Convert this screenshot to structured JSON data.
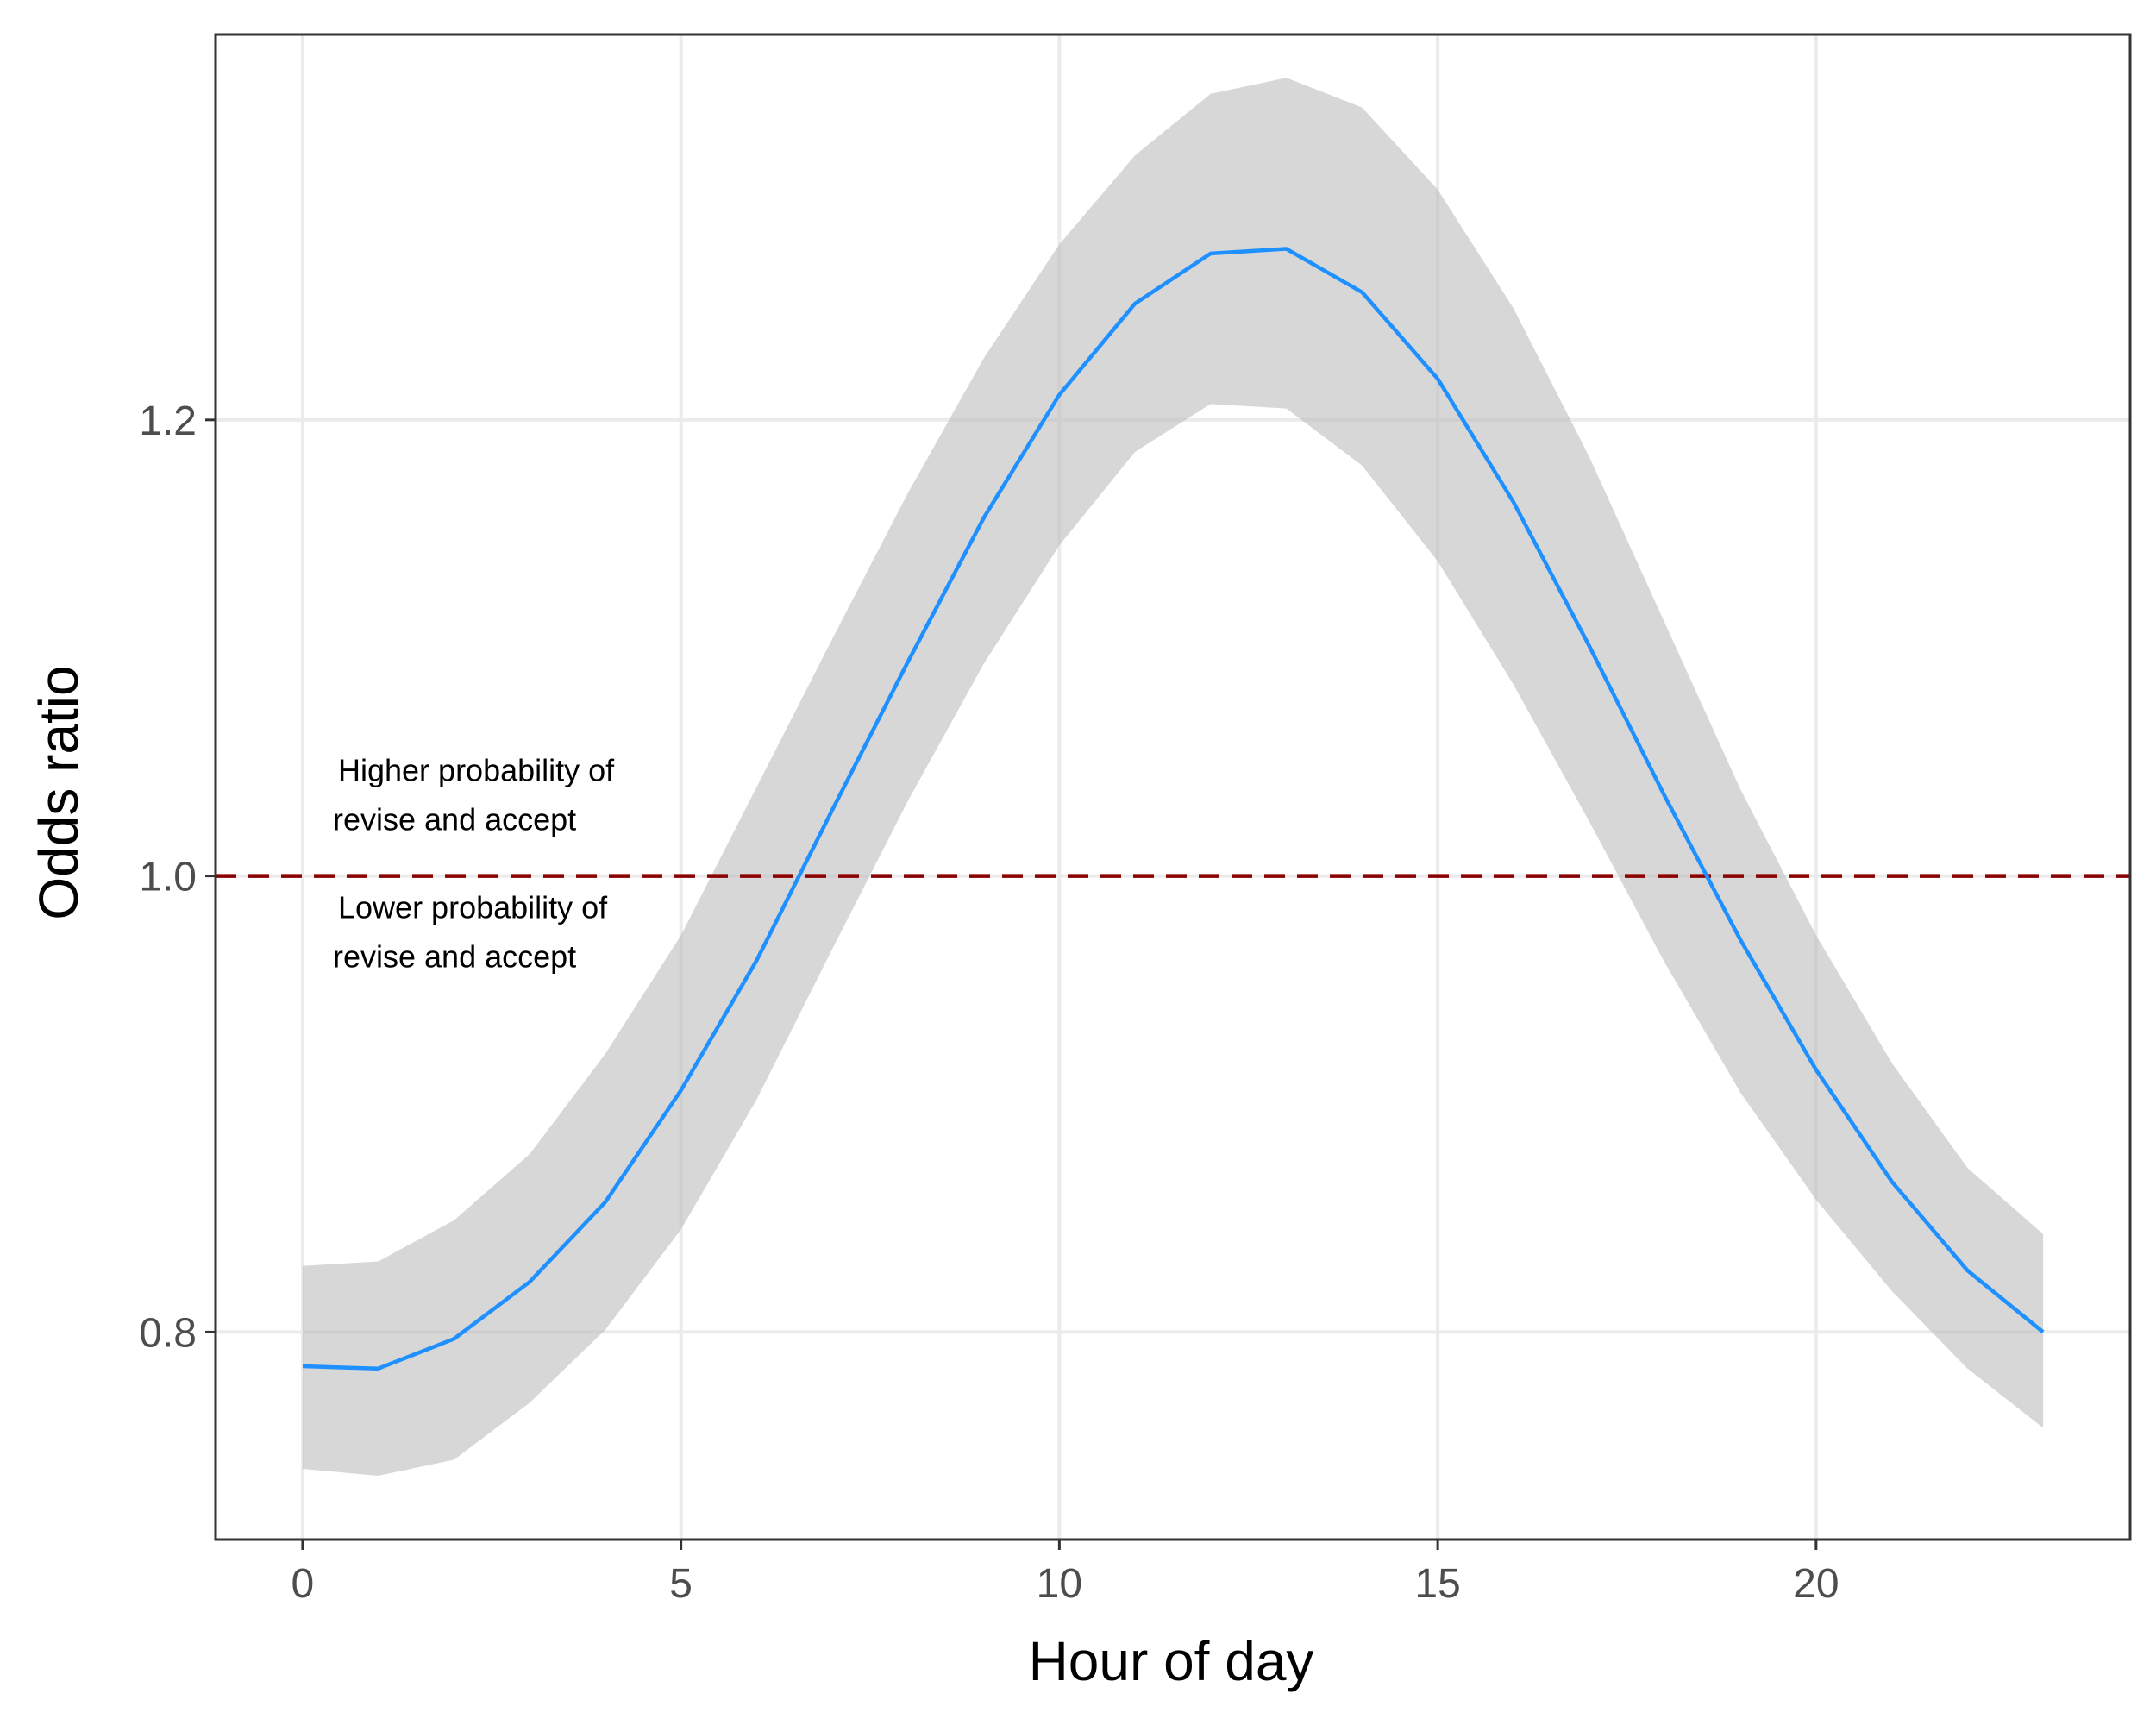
{
  "chart_data": {
    "type": "line",
    "title": "",
    "xlabel": "Hour of day",
    "ylabel": "Odds ratio",
    "xlim": [
      -1.15,
      24.15
    ],
    "ylim": [
      0.709,
      1.369
    ],
    "x_ticks": [
      0,
      5,
      10,
      15,
      20
    ],
    "x_tick_labels": [
      "0",
      "5",
      "10",
      "15",
      "20"
    ],
    "y_ticks": [
      0.8,
      1.0,
      1.2
    ],
    "y_tick_labels": [
      "0.8",
      "1.0",
      "1.2"
    ],
    "grid": true,
    "series": [
      {
        "x": [
          0,
          1,
          2,
          3,
          4,
          5,
          6,
          7,
          8,
          9,
          10,
          11,
          12,
          13,
          14,
          15,
          16,
          17,
          18,
          19,
          20,
          21,
          22,
          23
        ],
        "y": [
          0.785,
          0.784,
          0.797,
          0.822,
          0.857,
          0.906,
          0.963,
          1.029,
          1.094,
          1.157,
          1.211,
          1.251,
          1.273,
          1.275,
          1.256,
          1.218,
          1.164,
          1.101,
          1.035,
          0.972,
          0.915,
          0.866,
          0.827,
          0.8
        ],
        "lower": [
          0.74,
          0.737,
          0.744,
          0.769,
          0.801,
          0.845,
          0.902,
          0.968,
          1.033,
          1.093,
          1.145,
          1.186,
          1.207,
          1.205,
          1.18,
          1.138,
          1.084,
          1.024,
          0.962,
          0.905,
          0.858,
          0.818,
          0.784,
          0.758
        ],
        "upper": [
          0.829,
          0.831,
          0.849,
          0.878,
          0.922,
          0.974,
          1.039,
          1.104,
          1.168,
          1.227,
          1.277,
          1.316,
          1.343,
          1.35,
          1.337,
          1.301,
          1.249,
          1.184,
          1.111,
          1.038,
          0.974,
          0.918,
          0.872,
          0.843
        ],
        "line_color": "#1E90FF",
        "band_color": "#BEBEBE"
      }
    ],
    "reference_line": {
      "y": 1.0,
      "style": "dashed",
      "color": "#8B0000"
    },
    "annotations": [
      {
        "lines": [
          "Higher probability of",
          "revise and accept"
        ],
        "x": 0.4,
        "y": 1.02
      },
      {
        "lines": [
          "Lower probability of",
          "revise and accept"
        ],
        "x": 0.4,
        "y": 0.96
      }
    ],
    "colors": {
      "background": "#FFFFFF",
      "grid": "#EBEBEB",
      "panel_border": "#333333",
      "tick_text": "#4D4D4D"
    }
  }
}
